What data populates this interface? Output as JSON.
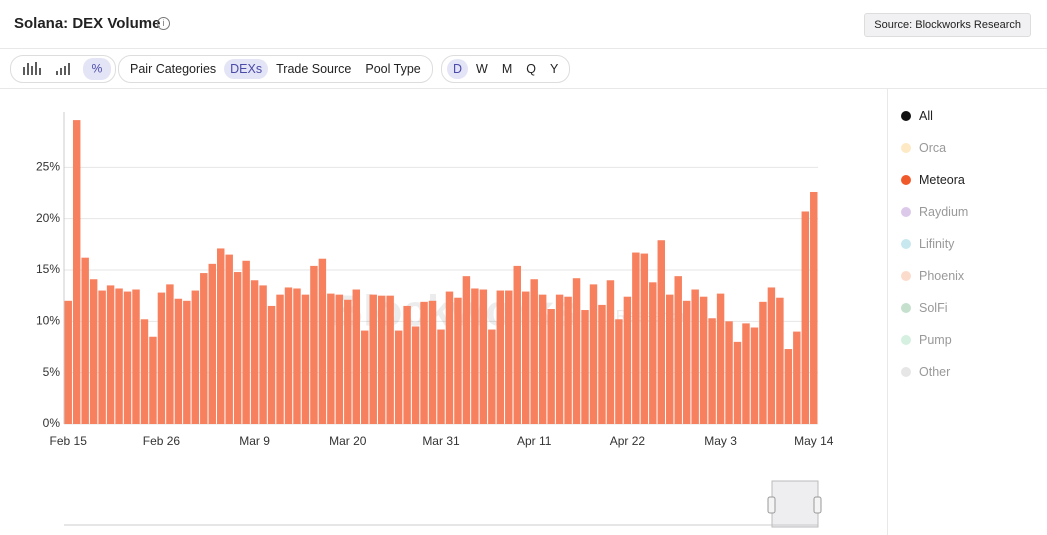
{
  "header": {
    "title": "Solana: DEX Volume",
    "source": "Source: Blockworks Research"
  },
  "toolbar": {
    "groups": [
      "Pair Categories",
      "DEXs",
      "Trade Source",
      "Pool Type"
    ],
    "selected_group": "DEXs",
    "periods": [
      "D",
      "W",
      "M",
      "Q",
      "Y"
    ],
    "selected_period": "D"
  },
  "legend": [
    {
      "name": "All",
      "color": "#111111"
    },
    {
      "name": "Orca",
      "color": "#fde9c4"
    },
    {
      "name": "Meteora",
      "color": "#f05a2b"
    },
    {
      "name": "Raydium",
      "color": "#dcc9ea"
    },
    {
      "name": "Lifinity",
      "color": "#c8e8ef"
    },
    {
      "name": "Phoenix",
      "color": "#fbdccc"
    },
    {
      "name": "SolFi",
      "color": "#c5e0cd"
    },
    {
      "name": "Pump",
      "color": "#d5f0e0"
    },
    {
      "name": "Other",
      "color": "#e6e6e6"
    }
  ],
  "watermark": [
    "Blockworks",
    "Research"
  ],
  "chart_data": {
    "type": "bar",
    "categories": [
      "Feb 15",
      null,
      null,
      null,
      null,
      null,
      null,
      null,
      null,
      null,
      null,
      "Feb 26",
      null,
      null,
      null,
      null,
      null,
      null,
      null,
      null,
      null,
      null,
      "Mar 9",
      null,
      null,
      null,
      null,
      null,
      null,
      null,
      null,
      null,
      null,
      "Mar 20",
      null,
      null,
      null,
      null,
      null,
      null,
      null,
      null,
      null,
      null,
      "Mar 31",
      null,
      null,
      null,
      null,
      null,
      null,
      null,
      null,
      null,
      null,
      "Apr 11",
      null,
      null,
      null,
      null,
      null,
      null,
      null,
      null,
      null,
      null,
      "Apr 22",
      null,
      null,
      null,
      null,
      null,
      null,
      null,
      null,
      null,
      null,
      "May 3",
      null,
      null,
      null,
      null,
      null,
      null,
      null,
      null,
      null,
      null,
      "May 14"
    ],
    "series": [
      {
        "name": "Meteora",
        "color": "#f7805f",
        "values": [
          12,
          29.6,
          16.2,
          14.1,
          13,
          13.5,
          13.2,
          12.9,
          13.1,
          10.2,
          8.5,
          12.8,
          13.6,
          12.2,
          12,
          13,
          14.7,
          15.6,
          17.1,
          16.5,
          14.8,
          15.9,
          14,
          13.5,
          11.5,
          12.6,
          13.3,
          13.2,
          12.6,
          15.4,
          16.1,
          12.7,
          12.6,
          12.1,
          13.1,
          9.1,
          12.6,
          12.5,
          12.5,
          9.1,
          11.5,
          9.5,
          11.9,
          12,
          9.2,
          12.9,
          12.3,
          14.4,
          13.2,
          13.1,
          9.2,
          13,
          13,
          15.4,
          12.9,
          14.1,
          12.6,
          11.2,
          12.6,
          12.4,
          14.2,
          11.1,
          13.6,
          11.6,
          14,
          10.2,
          12.4,
          16.7,
          16.6,
          13.8,
          17.9,
          12.6,
          14.4,
          12,
          13.1,
          12.4,
          10.3,
          12.7,
          10,
          8,
          9.8,
          9.4,
          11.9,
          13.3,
          12.3,
          7.3,
          9,
          20.7,
          22.6
        ]
      }
    ],
    "ylim": [
      0,
      30
    ],
    "yticks": [
      {
        "value": 0,
        "label": "0%"
      },
      {
        "value": 5,
        "label": "5%"
      },
      {
        "value": 10,
        "label": "10%"
      },
      {
        "value": 15,
        "label": "15%"
      },
      {
        "value": 20,
        "label": "20%"
      },
      {
        "value": 25,
        "label": "25%"
      }
    ],
    "grid": true
  }
}
